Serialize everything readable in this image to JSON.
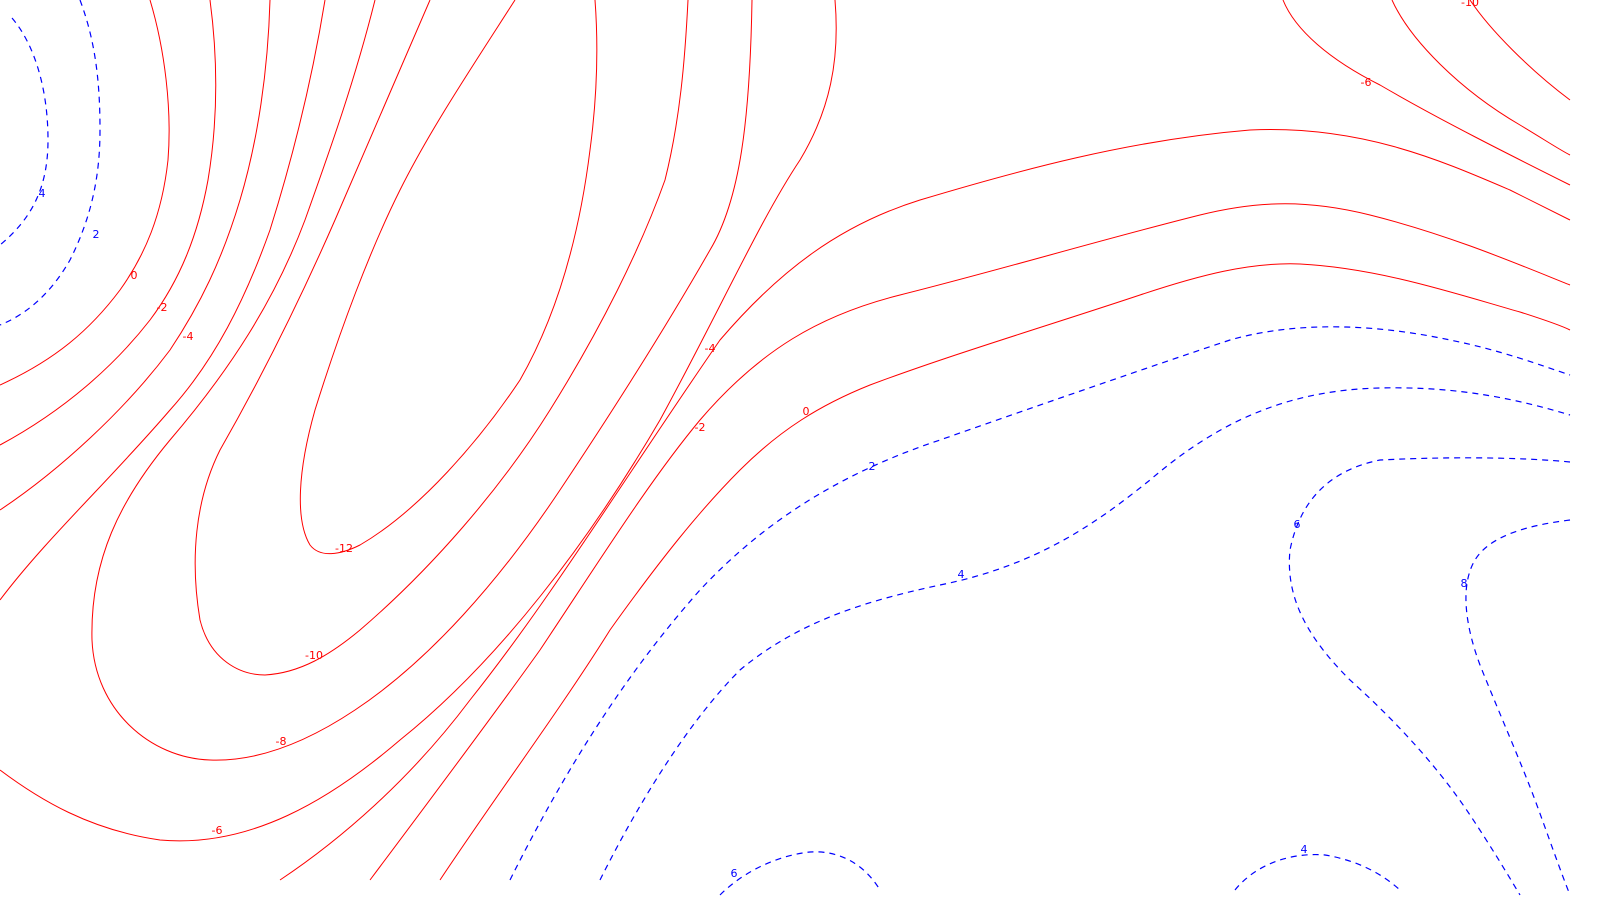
{
  "map": {
    "colors": {
      "negative_contour": "#ff0000",
      "positive_contour": "#0000ff",
      "background": "#ffffff"
    },
    "contour_labels": {
      "pos_4_left": "4",
      "pos_2_left": "2",
      "zero_left": "0",
      "neg2_left": "-2",
      "neg4_left": "-4",
      "neg12": "-12",
      "neg10_bottom": "-10",
      "neg8_bottom": "-8",
      "neg6_bottom": "-6",
      "neg4_center": "-4",
      "neg2_center": "-2",
      "zero_center": "0",
      "pos2_center": "2",
      "pos4_center": "4",
      "neg6_top_right": "-6",
      "neg10_top_right": "-10",
      "pos6_right": "6",
      "pos8_right": "8",
      "pos6_bottom": "6",
      "pos4_bottom_right": "4"
    }
  }
}
